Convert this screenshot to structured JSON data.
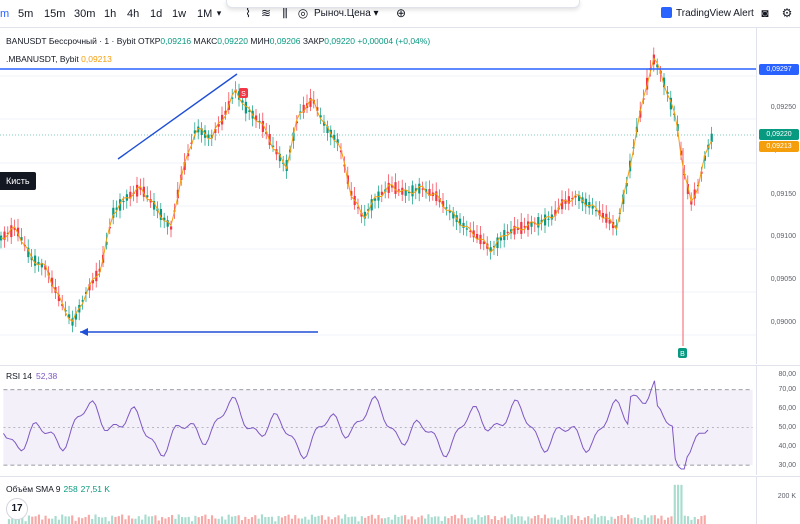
{
  "toolbar": {
    "partial_left": "m",
    "timeframes": [
      "5m",
      "15m",
      "30m",
      "1h",
      "4h",
      "1d",
      "1w",
      "1M"
    ],
    "price_type": "Рыноч.Цена",
    "alert_label": "TradingView Alert"
  },
  "legend": {
    "symbol": "BANUSDT Бессрочный · 1 · Bybit",
    "open_label": "ОТКР",
    "open": "0,09216",
    "high_label": "МАКС",
    "high": "0,09220",
    "low_label": "МИН",
    "low": "0,09206",
    "close_label": "ЗАКР",
    "close": "0,09220",
    "change": "+0,00004 (+0,04%)",
    "ma_label": ".MBANUSDT, Bybit",
    "ma_value": "0,09213"
  },
  "brush_tooltip": "Кисть",
  "markers": {
    "sell": "S",
    "buy": "B"
  },
  "price_scale": {
    "ticks": [
      "0,09250",
      "0,09200",
      "0,09150",
      "0,09100",
      "0,09050",
      "0,09000"
    ],
    "line_badge": "0,09297",
    "last_badge": "0,09220",
    "ma_badge": "0,09213",
    "colors": {
      "up": "#089981",
      "down": "#f23645",
      "line": "#2962ff",
      "ma": "#f59e0b"
    }
  },
  "rsi": {
    "label": "RSI 14",
    "value": "52,38",
    "ticks": [
      "80,00",
      "70,00",
      "60,00",
      "50,00",
      "40,00",
      "30,00"
    ],
    "color": "#7e57c2"
  },
  "volume": {
    "label": "Объём SMA 9",
    "v1": "258",
    "v2": "27,51 K",
    "tick": "200 K"
  },
  "logo": "17"
}
